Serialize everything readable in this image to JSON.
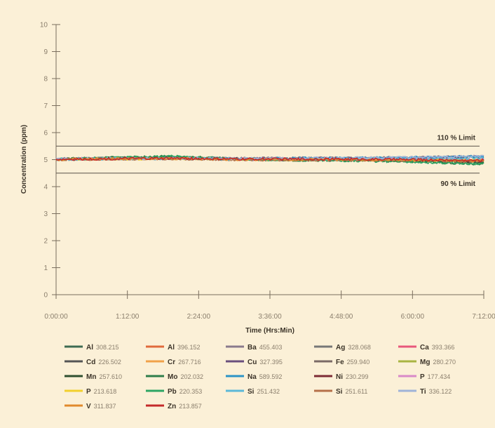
{
  "chart_data": {
    "type": "line",
    "xlabel": "Time (Hrs:Min)",
    "ylabel": "Concentration (ppm)",
    "x_ticks_labels": [
      "0:00:00",
      "1:12:00",
      "2:24:00",
      "3:36:00",
      "4:48:00",
      "6:00:00",
      "7:12:00"
    ],
    "x_ticks_minutes": [
      0,
      72,
      144,
      216,
      288,
      360,
      432
    ],
    "xlim_minutes": [
      0,
      432
    ],
    "ylim": [
      0,
      10
    ],
    "y_ticks": [
      0,
      1,
      2,
      3,
      4,
      5,
      6,
      7,
      8,
      9,
      10
    ],
    "grid": false,
    "legend_position": "bottom",
    "limits": [
      {
        "label": "110 % Limit",
        "value": 5.5
      },
      {
        "label": "90 % Limit",
        "value": 4.5
      }
    ],
    "series": [
      {
        "element": "Al",
        "wavelength": "308.215",
        "color": "#3d6b52",
        "values": [
          5.02,
          5.05,
          5.08,
          5.04,
          5.02,
          5.03,
          5.05,
          5.1
        ]
      },
      {
        "element": "Al",
        "wavelength": "396.152",
        "color": "#e06a3c",
        "values": [
          5.0,
          5.03,
          5.05,
          5.02,
          5.0,
          5.0,
          4.98,
          4.96
        ]
      },
      {
        "element": "Ba",
        "wavelength": "455.403",
        "color": "#8a7a8c",
        "values": [
          5.03,
          5.06,
          5.05,
          5.05,
          5.06,
          5.06,
          5.08,
          5.12
        ]
      },
      {
        "element": "Ag",
        "wavelength": "328.068",
        "color": "#777777",
        "values": [
          5.0,
          5.04,
          5.06,
          5.02,
          5.0,
          5.01,
          5.0,
          4.98
        ]
      },
      {
        "element": "Ca",
        "wavelength": "393.366",
        "color": "#e8577b",
        "values": [
          5.02,
          5.04,
          5.06,
          5.04,
          5.03,
          5.03,
          5.02,
          5.0
        ]
      },
      {
        "element": "Cd",
        "wavelength": "226.502",
        "color": "#545454",
        "values": [
          5.01,
          5.03,
          5.04,
          5.01,
          5.0,
          5.0,
          4.98,
          4.95
        ]
      },
      {
        "element": "Cr",
        "wavelength": "267.716",
        "color": "#f0a24a",
        "values": [
          5.0,
          5.03,
          5.05,
          5.02,
          5.01,
          5.01,
          5.0,
          4.97
        ]
      },
      {
        "element": "Cu",
        "wavelength": "327.395",
        "color": "#6a4f7d",
        "values": [
          5.02,
          5.05,
          5.06,
          5.04,
          5.05,
          5.05,
          5.07,
          5.1
        ]
      },
      {
        "element": "Fe",
        "wavelength": "259.940",
        "color": "#7a6a66",
        "values": [
          5.01,
          5.03,
          5.04,
          5.01,
          5.0,
          5.0,
          4.98,
          4.96
        ]
      },
      {
        "element": "Mg",
        "wavelength": "280.270",
        "color": "#a9b442",
        "values": [
          5.0,
          5.04,
          5.05,
          5.02,
          5.0,
          5.0,
          4.99,
          4.97
        ]
      },
      {
        "element": "Mn",
        "wavelength": "257.610",
        "color": "#2f4f2f",
        "values": [
          5.01,
          5.06,
          5.08,
          5.02,
          4.99,
          4.98,
          4.95,
          4.9
        ]
      },
      {
        "element": "Mo",
        "wavelength": "202.032",
        "color": "#2e7d4a",
        "values": [
          5.02,
          5.08,
          5.12,
          5.03,
          4.98,
          4.97,
          4.93,
          4.85
        ]
      },
      {
        "element": "Na",
        "wavelength": "589.592",
        "color": "#2c93c6",
        "values": [
          5.02,
          5.04,
          5.05,
          5.04,
          5.05,
          5.06,
          5.08,
          5.12
        ]
      },
      {
        "element": "Ni",
        "wavelength": "230.299",
        "color": "#7d2b35",
        "values": [
          5.0,
          5.03,
          5.04,
          5.01,
          5.0,
          5.0,
          4.98,
          4.95
        ]
      },
      {
        "element": "P",
        "wavelength": "177.434",
        "color": "#d98ac8",
        "values": [
          5.01,
          5.03,
          5.04,
          5.02,
          5.02,
          5.02,
          5.01,
          5.0
        ]
      },
      {
        "element": "P",
        "wavelength": "213.618",
        "color": "#f2d02c",
        "values": [
          5.0,
          5.02,
          5.04,
          5.01,
          5.0,
          5.0,
          4.99,
          4.97
        ]
      },
      {
        "element": "Pb",
        "wavelength": "220.353",
        "color": "#2da564",
        "values": [
          5.02,
          5.07,
          5.12,
          5.02,
          4.98,
          4.96,
          4.92,
          4.85
        ]
      },
      {
        "element": "Si",
        "wavelength": "251.432",
        "color": "#5bb8d8",
        "values": [
          5.01,
          5.03,
          5.04,
          5.02,
          5.02,
          5.03,
          5.04,
          5.06
        ]
      },
      {
        "element": "Si",
        "wavelength": "251.611",
        "color": "#b5704a",
        "values": [
          5.0,
          5.02,
          5.03,
          5.0,
          4.99,
          4.99,
          4.97,
          4.94
        ]
      },
      {
        "element": "Ti",
        "wavelength": "336.122",
        "color": "#9fb3d8",
        "values": [
          5.02,
          5.04,
          5.05,
          5.04,
          5.05,
          5.06,
          5.08,
          5.12
        ]
      },
      {
        "element": "V",
        "wavelength": "311.837",
        "color": "#e08a2c",
        "values": [
          5.0,
          5.03,
          5.04,
          5.01,
          5.0,
          5.0,
          4.98,
          4.96
        ]
      },
      {
        "element": "Zn",
        "wavelength": "213.857",
        "color": "#c42a2a",
        "values": [
          5.01,
          5.03,
          5.05,
          5.02,
          5.02,
          5.02,
          5.0,
          4.97
        ]
      }
    ],
    "x_minutes": [
      0,
      60,
      120,
      180,
      240,
      300,
      360,
      420
    ]
  }
}
